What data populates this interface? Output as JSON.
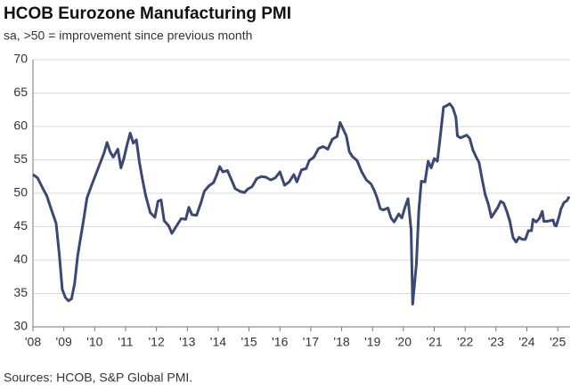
{
  "chart_data": {
    "type": "line",
    "title": "HCOB Eurozone Manufacturing PMI",
    "subtitle": "sa, >50 = improvement since previous month",
    "source": "Sources: HCOB, S&P Global PMI.",
    "grid": true,
    "xlim": [
      2008,
      2025.4
    ],
    "xticks": [
      {
        "value": 2008,
        "label": "'08"
      },
      {
        "value": 2009,
        "label": "'09"
      },
      {
        "value": 2010,
        "label": "'10"
      },
      {
        "value": 2011,
        "label": "'11"
      },
      {
        "value": 2012,
        "label": "'12"
      },
      {
        "value": 2013,
        "label": "'13"
      },
      {
        "value": 2014,
        "label": "'14"
      },
      {
        "value": 2015,
        "label": "'15"
      },
      {
        "value": 2016,
        "label": "'16"
      },
      {
        "value": 2017,
        "label": "'17"
      },
      {
        "value": 2018,
        "label": "'18"
      },
      {
        "value": 2019,
        "label": "'19"
      },
      {
        "value": 2020,
        "label": "'20"
      },
      {
        "value": 2021,
        "label": "'21"
      },
      {
        "value": 2022,
        "label": "'22"
      },
      {
        "value": 2023,
        "label": "'23"
      },
      {
        "value": 2024,
        "label": "'24"
      },
      {
        "value": 2025,
        "label": "'25"
      }
    ],
    "ylim": [
      30,
      70
    ],
    "yticks": [
      30,
      35,
      40,
      45,
      50,
      55,
      60,
      65,
      70
    ],
    "x": [
      2008.0,
      2008.15,
      2008.3,
      2008.45,
      2008.6,
      2008.75,
      2008.85,
      2008.95,
      2009.05,
      2009.15,
      2009.25,
      2009.35,
      2009.45,
      2009.55,
      2009.65,
      2009.75,
      2009.9,
      2010.0,
      2010.15,
      2010.3,
      2010.4,
      2010.5,
      2010.6,
      2010.75,
      2010.85,
      2010.95,
      2011.05,
      2011.15,
      2011.25,
      2011.35,
      2011.45,
      2011.55,
      2011.65,
      2011.8,
      2011.95,
      2012.05,
      2012.15,
      2012.25,
      2012.4,
      2012.5,
      2012.65,
      2012.8,
      2012.95,
      2013.05,
      2013.15,
      2013.3,
      2013.45,
      2013.55,
      2013.7,
      2013.85,
      2013.95,
      2014.05,
      2014.15,
      2014.3,
      2014.45,
      2014.55,
      2014.7,
      2014.85,
      2014.95,
      2015.1,
      2015.25,
      2015.4,
      2015.55,
      2015.7,
      2015.85,
      2016.0,
      2016.15,
      2016.3,
      2016.45,
      2016.55,
      2016.7,
      2016.85,
      2016.95,
      2017.1,
      2017.25,
      2017.4,
      2017.55,
      2017.7,
      2017.85,
      2017.95,
      2018.05,
      2018.15,
      2018.25,
      2018.35,
      2018.5,
      2018.65,
      2018.8,
      2018.95,
      2019.05,
      2019.15,
      2019.25,
      2019.35,
      2019.5,
      2019.6,
      2019.7,
      2019.85,
      2019.95,
      2020.05,
      2020.15,
      2020.25,
      2020.3,
      2020.42,
      2020.5,
      2020.58,
      2020.7,
      2020.8,
      2020.9,
      2021.0,
      2021.1,
      2021.18,
      2021.3,
      2021.4,
      2021.5,
      2021.6,
      2021.7,
      2021.75,
      2021.85,
      2021.95,
      2022.05,
      2022.15,
      2022.25,
      2022.35,
      2022.45,
      2022.55,
      2022.65,
      2022.75,
      2022.85,
      2022.95,
      2023.05,
      2023.15,
      2023.25,
      2023.35,
      2023.45,
      2023.55,
      2023.65,
      2023.75,
      2023.85,
      2023.95,
      2024.05,
      2024.15,
      2024.2,
      2024.3,
      2024.4,
      2024.5,
      2024.55,
      2024.65,
      2024.75,
      2024.85,
      2024.9,
      2024.95,
      2025.05,
      2025.1,
      2025.2,
      2025.3,
      2025.37
    ],
    "series": [
      {
        "name": "HCOB Eurozone Manufacturing PMI",
        "color": "#3b4774",
        "values": [
          52.8,
          52.3,
          50.9,
          49.6,
          47.5,
          45.5,
          41,
          35.6,
          34.4,
          33.9,
          34.2,
          36.5,
          40.7,
          43.5,
          46.3,
          49.3,
          51.2,
          52.4,
          54.2,
          56,
          57.6,
          56.2,
          55.4,
          56.6,
          53.8,
          55.3,
          57.3,
          59,
          57.5,
          58,
          54.6,
          52,
          49.7,
          47.1,
          46.4,
          48.8,
          49,
          45.9,
          45.1,
          44,
          45.1,
          46.2,
          46.1,
          47.9,
          46.8,
          46.7,
          48.7,
          50.3,
          51.1,
          51.6,
          52.7,
          54,
          53.2,
          53.4,
          51.8,
          50.7,
          50.3,
          50.1,
          50.6,
          51,
          52.2,
          52.5,
          52.4,
          52,
          52.3,
          53.2,
          51.2,
          51.7,
          52.8,
          51.7,
          53.5,
          53.7,
          54.9,
          55.4,
          56.7,
          57,
          56.6,
          58.1,
          58.5,
          60.6,
          59.6,
          58.6,
          56.2,
          55.5,
          54.9,
          53.2,
          52,
          51.4,
          50.5,
          49.3,
          47.7,
          47.5,
          47.8,
          46.3,
          45.7,
          46.9,
          46.3,
          47.9,
          49.2,
          44.5,
          33.4,
          39.4,
          47.4,
          51.8,
          51.7,
          54.8,
          53.8,
          55.2,
          54.8,
          57.9,
          62.9,
          63.1,
          63.4,
          62.8,
          61.4,
          58.6,
          58.3,
          58.5,
          58.7,
          58.2,
          56.5,
          55.5,
          54.6,
          52.1,
          49.8,
          48.4,
          46.4,
          47.1,
          47.8,
          48.8,
          48.5,
          47.3,
          45.8,
          43.4,
          42.7,
          43.4,
          43.1,
          43.1,
          44.4,
          44.4,
          46.1,
          45.7,
          46.2,
          47.3,
          45.8,
          45.8,
          45.9,
          46,
          45.2,
          45.1,
          46.6,
          47.6,
          48.6,
          48.9,
          49.5
        ]
      }
    ]
  }
}
